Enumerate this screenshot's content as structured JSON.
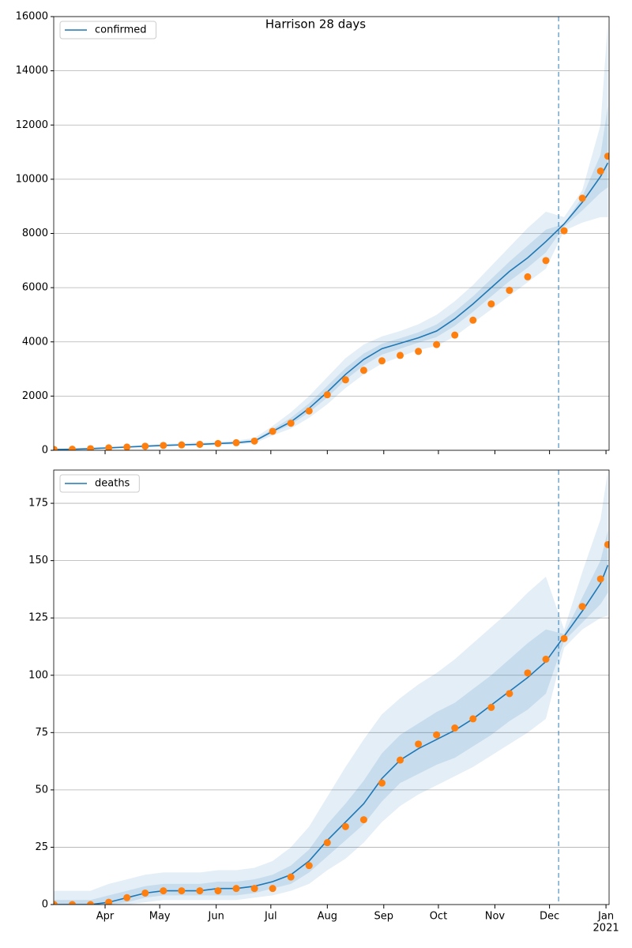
{
  "chart_data": [
    {
      "type": "line",
      "title": "Harrison 28 days",
      "x": [
        63,
        73,
        83,
        93,
        103,
        113,
        123,
        133,
        143,
        153,
        163,
        173,
        183,
        193,
        203,
        213,
        223,
        233,
        243,
        253,
        263,
        273,
        283,
        293,
        303,
        313,
        323,
        333,
        343,
        353,
        363,
        367
      ],
      "series": [
        {
          "name": "confirmed",
          "color": "#1f77b4",
          "values": [
            30,
            40,
            60,
            90,
            120,
            150,
            180,
            200,
            220,
            250,
            280,
            340,
            700,
            1050,
            1550,
            2150,
            2800,
            3350,
            3750,
            3950,
            4150,
            4400,
            4850,
            5400,
            6000,
            6600,
            7100,
            7700,
            8350,
            9150,
            10100,
            10600
          ]
        }
      ],
      "observed": {
        "color": "#ff7f0e",
        "values": [
          30,
          40,
          60,
          90,
          120,
          150,
          180,
          200,
          220,
          250,
          280,
          340,
          700,
          1000,
          1450,
          2050,
          2600,
          2950,
          3300,
          3500,
          3650,
          3900,
          4250,
          4800,
          5400,
          5900,
          6400,
          7000,
          8100,
          9300,
          10300,
          10850
        ]
      },
      "bands": [
        {
          "color": "#1f77b4",
          "opacity": 0.12,
          "lower": [
            10,
            20,
            30,
            60,
            90,
            110,
            140,
            160,
            170,
            190,
            220,
            260,
            550,
            800,
            1200,
            1700,
            2300,
            2800,
            3200,
            3450,
            3700,
            3850,
            4200,
            4700,
            5200,
            5700,
            6200,
            6700,
            8100,
            8400,
            8600,
            8600
          ],
          "upper": [
            60,
            70,
            100,
            130,
            160,
            200,
            230,
            260,
            290,
            320,
            360,
            450,
            900,
            1400,
            2000,
            2700,
            3400,
            3900,
            4200,
            4400,
            4650,
            5000,
            5500,
            6100,
            6800,
            7500,
            8200,
            8800,
            8600,
            9600,
            12000,
            15800
          ]
        },
        {
          "color": "#1f77b4",
          "opacity": 0.15,
          "lower": [
            20,
            30,
            50,
            80,
            110,
            135,
            165,
            185,
            200,
            225,
            255,
            310,
            640,
            950,
            1400,
            1950,
            2600,
            3130,
            3530,
            3750,
            3970,
            4180,
            4590,
            5110,
            5680,
            6240,
            6740,
            7300,
            8250,
            8850,
            9500,
            9700
          ],
          "upper": [
            40,
            50,
            70,
            100,
            130,
            165,
            195,
            225,
            245,
            275,
            310,
            380,
            780,
            1200,
            1730,
            2380,
            3030,
            3570,
            3930,
            4130,
            4350,
            4640,
            5110,
            5680,
            6320,
            6960,
            7550,
            8140,
            8350,
            9350,
            10900,
            12700
          ]
        }
      ],
      "vline": 340,
      "xlim": [
        62.8,
        367.7
      ],
      "xticks": [
        {
          "value": 91,
          "label": "Apr"
        },
        {
          "value": 121,
          "label": "May"
        },
        {
          "value": 152,
          "label": "Jun"
        },
        {
          "value": 182,
          "label": "Jul"
        },
        {
          "value": 213,
          "label": "Aug"
        },
        {
          "value": 244,
          "label": "Sep"
        },
        {
          "value": 274,
          "label": "Oct"
        },
        {
          "value": 305,
          "label": "Nov"
        },
        {
          "value": 335,
          "label": "Dec"
        },
        {
          "value": 366,
          "label": "Jan"
        }
      ],
      "ylim": [
        0,
        16000
      ],
      "yticks": [
        0,
        2000,
        4000,
        6000,
        8000,
        10000,
        12000,
        14000,
        16000
      ],
      "grid": true,
      "legend": "upper left",
      "show_xlabels": false
    },
    {
      "type": "line",
      "x": [
        63,
        73,
        83,
        93,
        103,
        113,
        123,
        133,
        143,
        153,
        163,
        173,
        183,
        193,
        203,
        213,
        223,
        233,
        243,
        253,
        263,
        273,
        283,
        293,
        303,
        313,
        323,
        333,
        343,
        353,
        363,
        367
      ],
      "series": [
        {
          "name": "deaths",
          "color": "#1f77b4",
          "values": [
            0,
            0,
            0,
            1,
            3,
            5,
            6,
            6,
            6,
            7,
            7,
            8,
            10,
            13,
            19,
            28,
            36,
            44,
            55,
            63,
            68,
            72,
            76,
            81,
            87,
            93,
            99,
            106,
            117,
            128,
            140,
            148
          ]
        }
      ],
      "observed": {
        "color": "#ff7f0e",
        "values": [
          0,
          0,
          0,
          1,
          3,
          5,
          6,
          6,
          6,
          6,
          7,
          7,
          7,
          12,
          17,
          27,
          34,
          37,
          53,
          63,
          70,
          74,
          77,
          81,
          86,
          92,
          101,
          107,
          116,
          130,
          142,
          157
        ]
      },
      "bands": [
        {
          "color": "#1f77b4",
          "opacity": 0.12,
          "lower": [
            0,
            0,
            0,
            0,
            0,
            1,
            2,
            2,
            2,
            2,
            2,
            3,
            4,
            6,
            9,
            15,
            20,
            27,
            36,
            43,
            48,
            52,
            56,
            60,
            65,
            70,
            75,
            81,
            112,
            120,
            125,
            126
          ],
          "upper": [
            6,
            6,
            6,
            9,
            11,
            13,
            14,
            14,
            14,
            15,
            15,
            16,
            19,
            25,
            34,
            47,
            60,
            72,
            83,
            90,
            96,
            101,
            107,
            114,
            121,
            128,
            136,
            143,
            120,
            145,
            168,
            189
          ]
        },
        {
          "color": "#1f77b4",
          "opacity": 0.15,
          "lower": [
            0,
            0,
            0,
            0,
            1,
            3,
            4,
            4,
            4,
            4,
            4,
            5,
            7,
            9,
            14,
            21,
            28,
            35,
            45,
            53,
            57,
            61,
            64,
            69,
            74,
            80,
            85,
            92,
            115,
            123,
            131,
            136
          ],
          "upper": [
            2,
            2,
            2,
            4,
            6,
            8,
            9,
            9,
            9,
            10,
            10,
            11,
            13,
            17,
            24,
            35,
            44,
            54,
            66,
            74,
            79,
            84,
            88,
            94,
            100,
            107,
            114,
            120,
            118,
            134,
            150,
            163
          ]
        }
      ],
      "vline": 340,
      "xlim": [
        62.8,
        367.7
      ],
      "xticks": [
        {
          "value": 91,
          "label": "Apr"
        },
        {
          "value": 121,
          "label": "May"
        },
        {
          "value": 152,
          "label": "Jun"
        },
        {
          "value": 182,
          "label": "Jul"
        },
        {
          "value": 213,
          "label": "Aug"
        },
        {
          "value": 244,
          "label": "Sep"
        },
        {
          "value": 274,
          "label": "Oct"
        },
        {
          "value": 305,
          "label": "Nov"
        },
        {
          "value": 335,
          "label": "Dec"
        },
        {
          "value": 366,
          "label": "Jan"
        }
      ],
      "year_label": {
        "value": 366,
        "label": "2021"
      },
      "ylim": [
        0,
        189.5
      ],
      "yticks": [
        0,
        25,
        50,
        75,
        100,
        125,
        150,
        175
      ],
      "grid": true,
      "legend": "upper left",
      "show_xlabels": true
    }
  ]
}
